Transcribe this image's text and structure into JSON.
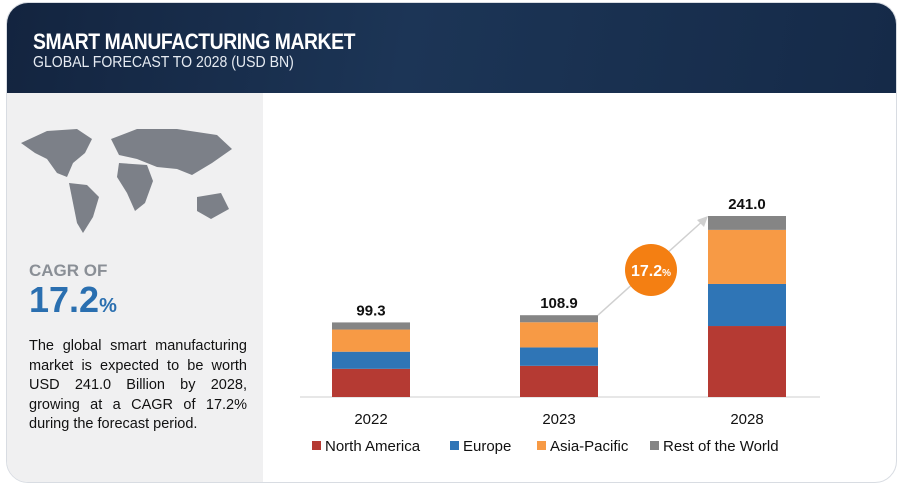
{
  "header": {
    "title": "SMART MANUFACTURING MARKET",
    "subtitle": "GLOBAL FORECAST TO 2028 (USD BN)"
  },
  "left_panel": {
    "cagr_label": "CAGR OF",
    "cagr_value": "17.2",
    "cagr_unit": "%",
    "description": "The global smart manufacturing market is expected to be worth USD 241.0 Billion by 2028, growing at a CAGR of 17.2% during the forecast period."
  },
  "colors": {
    "north_america": "#b53a33",
    "europe": "#2f75b6",
    "asia_pacific": "#f79a45",
    "rest": "#858585",
    "badge": "#f47f12"
  },
  "chart_data": {
    "type": "bar",
    "stacked": true,
    "title": "",
    "xlabel": "",
    "ylabel": "",
    "categories": [
      "2022",
      "2023",
      "2028"
    ],
    "totals": [
      "99.3",
      "108.9",
      "241.0"
    ],
    "series": [
      {
        "name": "North America",
        "values": [
          37.5,
          41.5,
          94.5
        ]
      },
      {
        "name": "Europe",
        "values": [
          22.8,
          24.5,
          56.0
        ]
      },
      {
        "name": "Asia-Pacific",
        "values": [
          29.5,
          33.5,
          72.0
        ]
      },
      {
        "name": "Rest of the World",
        "values": [
          9.5,
          9.4,
          18.5
        ]
      }
    ],
    "ylim": [
      0,
      241
    ],
    "legend_position": "bottom",
    "annotation": {
      "value": "17.2",
      "unit": "%"
    }
  }
}
